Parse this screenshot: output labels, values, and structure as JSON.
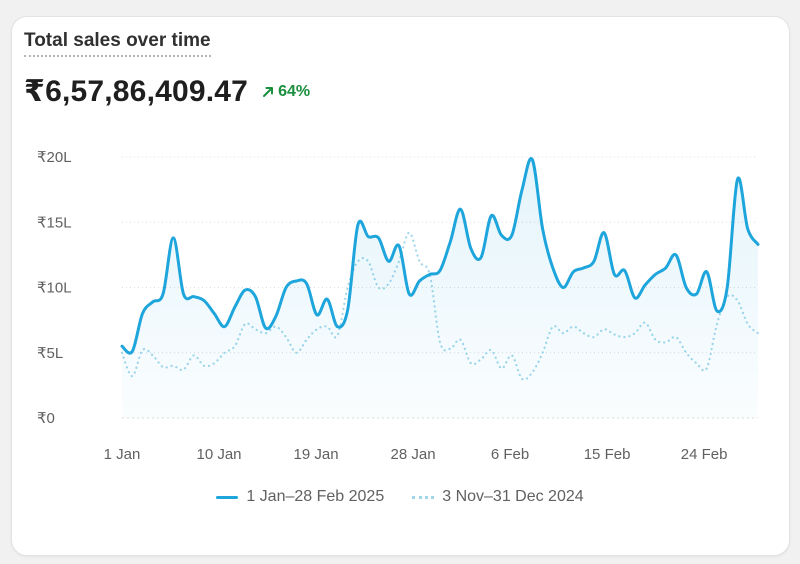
{
  "card": {
    "title": "Total sales over time",
    "total": "₹6,57,86,409.47",
    "change": "64%",
    "change_icon": "arrow-up-right-icon",
    "change_color": "#1a8f3e"
  },
  "chart_data": {
    "type": "line",
    "title": "Total sales over time",
    "xlabel": "",
    "ylabel": "",
    "ylim": [
      0,
      20
    ],
    "y_unit": "lakh ₹",
    "y_ticks": [
      "₹0",
      "₹5L",
      "₹10L",
      "₹15L",
      "₹20L"
    ],
    "x_tick_labels": [
      "1 Jan",
      "10 Jan",
      "19 Jan",
      "28 Jan",
      "6 Feb",
      "15 Feb",
      "24 Feb"
    ],
    "x_tick_days": [
      1,
      10,
      19,
      28,
      37,
      46,
      55
    ],
    "grid": true,
    "legend": "bottom",
    "series": [
      {
        "name": "1 Jan–28 Feb 2025",
        "style": "solid",
        "color": "#1ea5dc",
        "area": true,
        "values": [
          5.5,
          5.1,
          8.0,
          8.9,
          9.5,
          13.8,
          9.5,
          9.3,
          9.0,
          8.0,
          7.0,
          8.5,
          9.8,
          9.3,
          6.9,
          7.8,
          10.0,
          10.5,
          10.3,
          7.9,
          9.1,
          7.0,
          8.3,
          14.8,
          13.9,
          13.8,
          12.0,
          13.2,
          9.5,
          10.5,
          11.0,
          11.3,
          13.5,
          16.0,
          13.0,
          12.3,
          15.5,
          14.0,
          14.0,
          17.5,
          19.8,
          14.5,
          11.5,
          10.0,
          11.2,
          11.5,
          12.0,
          14.2,
          11.0,
          11.3,
          9.2,
          10.2,
          11.0,
          11.5,
          12.5,
          10.0,
          9.5,
          11.2,
          8.2,
          10.0,
          18.3,
          14.5,
          13.3
        ]
      },
      {
        "name": "3 Nov–31 Dec 2024",
        "style": "dotted",
        "color": "#9fd6ea",
        "area": false,
        "values": [
          5.0,
          3.2,
          5.2,
          4.8,
          3.9,
          4.0,
          3.7,
          4.8,
          4.0,
          4.2,
          5.0,
          5.5,
          7.2,
          6.8,
          6.5,
          7.0,
          6.2,
          5.0,
          6.0,
          6.8,
          7.0,
          6.3,
          10.0,
          12.0,
          12.0,
          10.0,
          10.3,
          12.0,
          14.2,
          12.0,
          11.0,
          5.8,
          5.3,
          6.0,
          4.2,
          4.5,
          5.2,
          3.8,
          4.8,
          3.0,
          3.5,
          5.0,
          7.0,
          6.5,
          7.0,
          6.5,
          6.2,
          6.8,
          6.4,
          6.2,
          6.5,
          7.3,
          6.0,
          5.8,
          6.2,
          5.0,
          4.2,
          3.8,
          7.2,
          9.3,
          9.0,
          7.2,
          6.5
        ]
      }
    ]
  }
}
